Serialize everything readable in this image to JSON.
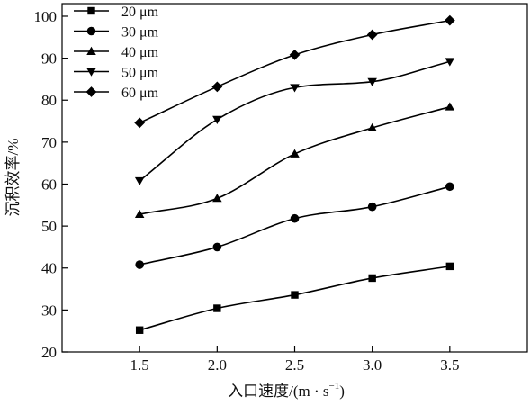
{
  "chart_data": {
    "type": "line",
    "xlabel": "入口速度/(m · s",
    "xlabel_sup": "−1",
    "xlabel_close": ")",
    "ylabel": "沉积效率/%",
    "x": [
      1.5,
      2.0,
      2.5,
      3.0,
      3.5
    ],
    "x_tick_labels": [
      "1.5",
      "2.0",
      "2.5",
      "3.0",
      "3.5"
    ],
    "y_ticks": [
      20,
      30,
      40,
      50,
      60,
      70,
      80,
      90,
      100
    ],
    "xlim": [
      1.0,
      4.0
    ],
    "ylim": [
      20,
      103
    ],
    "grid": false,
    "legend_position": "top-left",
    "series": [
      {
        "name": "20 μm",
        "marker": "square",
        "values": [
          25.2,
          30.4,
          33.6,
          37.6,
          40.4
        ]
      },
      {
        "name": "30 μm",
        "marker": "circle",
        "values": [
          40.8,
          45.0,
          51.8,
          54.6,
          59.4
        ]
      },
      {
        "name": "40 μm",
        "marker": "triangle-up",
        "values": [
          52.8,
          56.6,
          67.2,
          73.4,
          78.4
        ]
      },
      {
        "name": "50 μm",
        "marker": "triangle-down",
        "values": [
          60.8,
          75.4,
          83.0,
          84.4,
          89.2
        ]
      },
      {
        "name": "60 μm",
        "marker": "diamond",
        "values": [
          74.6,
          83.2,
          90.8,
          95.6,
          99.0
        ]
      }
    ]
  }
}
